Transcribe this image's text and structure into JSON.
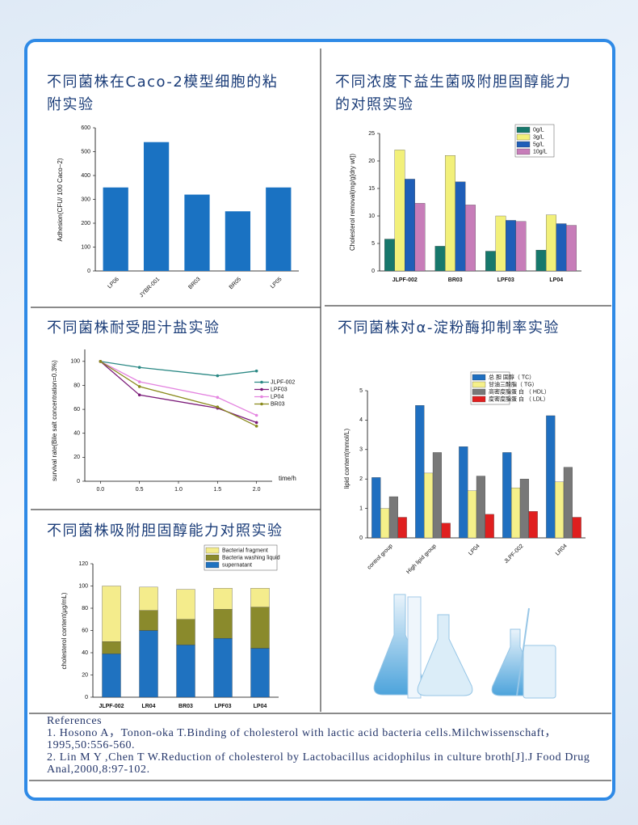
{
  "chart_data": [
    {
      "type": "bar",
      "title": "不同菌株在Caco-2模型细胞的粘附实验",
      "y_label": "Adhesion(CFU/ 100 Caco−2)",
      "categories": [
        "LP06",
        "JYBR-001",
        "BR03",
        "BR05",
        "LP05"
      ],
      "values": [
        350,
        540,
        320,
        250,
        350
      ],
      "color": "#1a72c2",
      "ylim": [
        0,
        600
      ],
      "yticks": [
        0,
        100,
        200,
        300,
        400,
        500,
        600
      ]
    },
    {
      "type": "bar",
      "title": "不同浓度下益生菌吸附胆固醇能力的对照实验",
      "y_label": "Cholesterol removal(mg/g[dry wt])",
      "categories": [
        "JLPF-002",
        "BR03",
        "LPF03",
        "LP04"
      ],
      "series": [
        {
          "name": "0g/L",
          "color": "#17786c",
          "values": [
            5.8,
            4.5,
            3.6,
            3.8
          ]
        },
        {
          "name": "3g/L",
          "color": "#f2f07a",
          "values": [
            22,
            21,
            10,
            10.2
          ]
        },
        {
          "name": "5g/L",
          "color": "#1f5eb8",
          "values": [
            16.7,
            16.2,
            9.2,
            8.6
          ]
        },
        {
          "name": "10g/L",
          "color": "#c77db9",
          "values": [
            12.3,
            12,
            9,
            8.3
          ]
        }
      ],
      "ylim": [
        0,
        25
      ],
      "yticks": [
        0,
        5,
        10,
        15,
        20,
        25
      ]
    },
    {
      "type": "line",
      "title": "不同菌株耐受胆汁盐实验",
      "y_label": "survival rate(Bile salt concentration=0.3%)",
      "x_label": "time/h",
      "x": [
        0,
        0.5,
        1.5,
        2
      ],
      "series": [
        {
          "name": "JLPF-002",
          "color": "#2a8884",
          "values": [
            100,
            95,
            88,
            92
          ]
        },
        {
          "name": "LPF03",
          "color": "#7a1a78",
          "values": [
            100,
            72,
            61,
            49
          ]
        },
        {
          "name": "LP04",
          "color": "#e484e0",
          "values": [
            100,
            83,
            70,
            55
          ]
        },
        {
          "name": "BR03",
          "color": "#8a8a1c",
          "values": [
            100,
            79,
            62,
            46
          ]
        }
      ],
      "xlim": [
        -0.2,
        2.2
      ],
      "xticks": [
        {
          "value": 0,
          "label": "0.0"
        },
        {
          "value": 0.5,
          "label": "0.5"
        },
        {
          "value": 1,
          "label": "1.0"
        },
        {
          "value": 1.5,
          "label": "1.5"
        },
        {
          "value": 2,
          "label": "2.0"
        }
      ],
      "ylim": [
        0,
        110
      ],
      "yticks": [
        0,
        20,
        40,
        60,
        80,
        100
      ]
    },
    {
      "type": "bar",
      "title": "不同菌株对α-淀粉酶抑制率实验",
      "y_label": "lipid content(mmol/L)",
      "categories": [
        "control group",
        "High lipid group",
        "LP04",
        "JLPF-002",
        "LR04"
      ],
      "series": [
        {
          "name": "总 胆 固醇（ TC）",
          "color": "#1f6fc0",
          "values": [
            2.05,
            4.5,
            3.1,
            2.9,
            4.15
          ]
        },
        {
          "name": "甘油三酸脂（ TG）",
          "color": "#f5f08a",
          "values": [
            1.0,
            2.2,
            1.6,
            1.7,
            1.9
          ]
        },
        {
          "name": "高密度脂蛋 白 （ HDL）",
          "color": "#787878",
          "values": [
            1.4,
            2.9,
            2.1,
            2.0,
            2.4
          ]
        },
        {
          "name": "度密度脂蛋 白 （ LDL）",
          "color": "#e01f1f",
          "values": [
            0.7,
            0.5,
            0.8,
            0.9,
            0.7
          ]
        }
      ],
      "ylim": [
        0,
        5
      ],
      "yticks": [
        0,
        1,
        2,
        3,
        4,
        5
      ]
    },
    {
      "type": "bar",
      "stacked": true,
      "title": "不同菌株吸附胆固醇能力对照实验",
      "y_label": "cholesterol content(μg/mL)",
      "categories": [
        "JLPF-002",
        "LR04",
        "BR03",
        "LPF03",
        "LP04"
      ],
      "series": [
        {
          "name": "supernatant",
          "color": "#1f72c0",
          "values": [
            39,
            60,
            47,
            53,
            44
          ]
        },
        {
          "name": "Bacteria washing liquid",
          "color": "#8a8a2c",
          "values": [
            11,
            18,
            23,
            26,
            37
          ]
        },
        {
          "name": "Bacterial fragment",
          "color": "#f4ec8c",
          "values": [
            50,
            21,
            27,
            19,
            17
          ]
        }
      ],
      "ylim": [
        0,
        120
      ],
      "yticks": [
        0,
        20,
        40,
        60,
        80,
        100,
        120
      ]
    }
  ],
  "references": {
    "heading": "References",
    "items": [
      "1. Hosono A，Tonon-oka T.Binding of cholesterol with lactic acid bacteria cells.Milchwissenschaft，1995,50:556-560.",
      "2. Lin M Y ,Chen T W.Reduction of cholesterol by Lactobacillus acidophilus in culture broth[J].J Food Drug Anal,2000,8:97-102."
    ]
  }
}
